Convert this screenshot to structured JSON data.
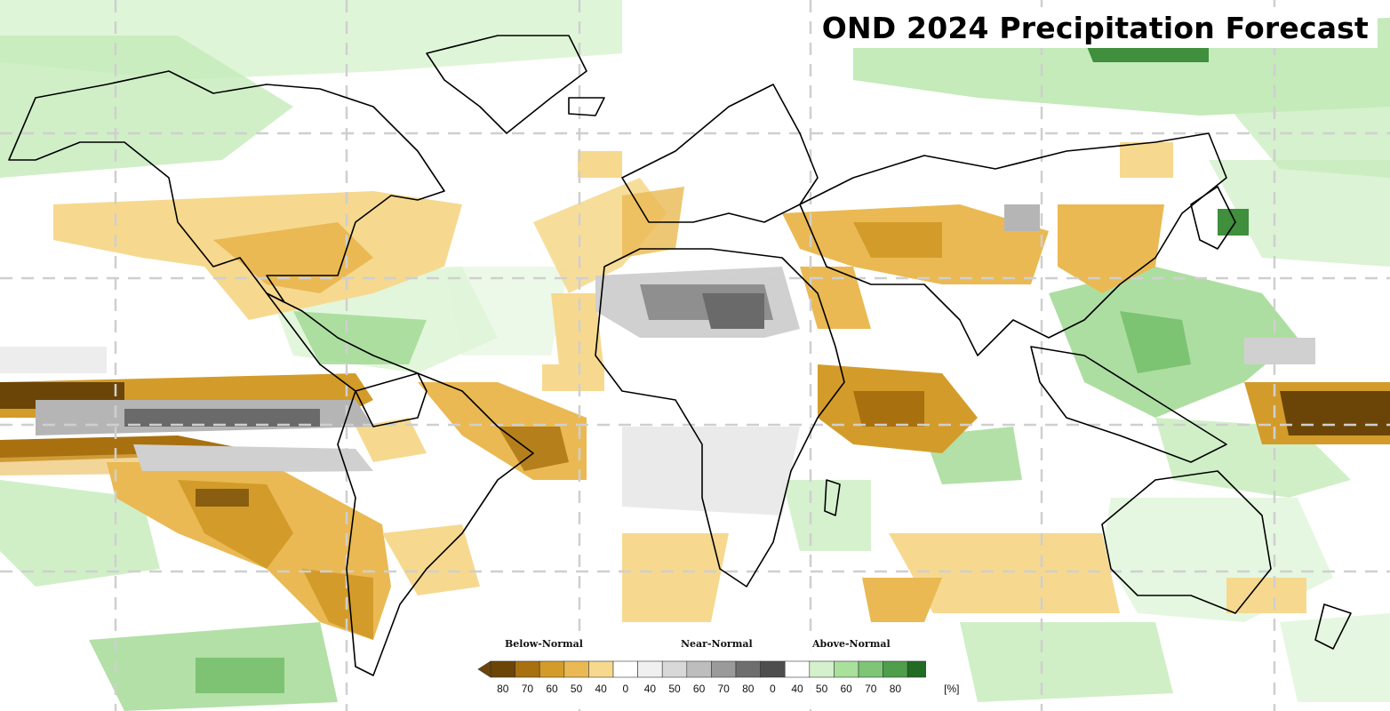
{
  "title": "OND 2024 Precipitation Forecast",
  "legend": {
    "categories": [
      "Below-Normal",
      "Near-Normal",
      "Above-Normal"
    ],
    "tick_labels": [
      "80",
      "70",
      "60",
      "50",
      "40",
      "0",
      "40",
      "50",
      "60",
      "70",
      "80",
      "0",
      "40",
      "50",
      "60",
      "70",
      "80"
    ],
    "unit": "[%]",
    "colors": {
      "below": [
        "#6b4507",
        "#a8700f",
        "#d39c2a",
        "#eab953",
        "#f6d98f"
      ],
      "near": [
        "#ffffff",
        "#f0f0f0",
        "#d8d8d8",
        "#bdbdbd",
        "#9a9a9a",
        "#6e6e6e",
        "#4d4d4d"
      ],
      "above": [
        "#ffffff",
        "#d4f0cc",
        "#a9e09c",
        "#7ec576",
        "#4e9e4b",
        "#226b22"
      ]
    }
  },
  "map": {
    "projection": "equirectangular world map",
    "grid": "dashed lat/lon lines every 30 degrees",
    "land_outline_color": "#000000"
  }
}
